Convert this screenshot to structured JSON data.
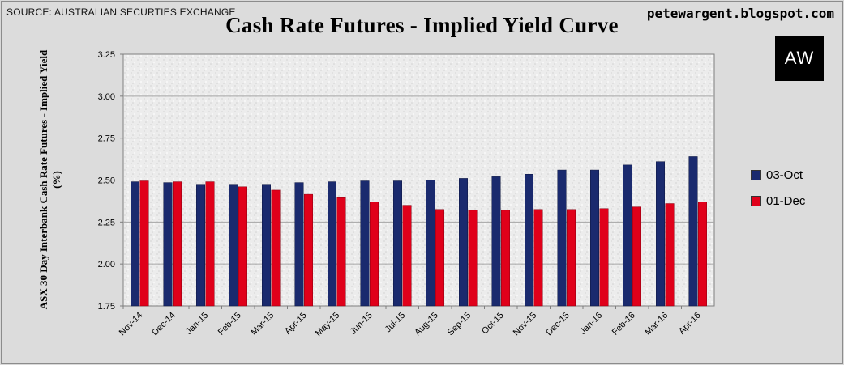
{
  "header": {
    "source": "SOURCE: AUSTRALIAN SECURTIES EXCHANGE",
    "blog": "petewargent.blogspot.com",
    "logo": "AW"
  },
  "colors": {
    "series1": "#1a2a6e",
    "series2": "#e0001a"
  },
  "chart_data": {
    "type": "bar",
    "title": "Cash Rate Futures - Implied Yield Curve",
    "xlabel": "",
    "ylabel": "ASX 30 Day Interbank Cash Rate Futures - Implied Yield (%)",
    "ylim": [
      1.75,
      3.25
    ],
    "yticks": [
      "1.75",
      "2.00",
      "2.25",
      "2.50",
      "2.75",
      "3.00",
      "3.25"
    ],
    "grid": true,
    "legend_position": "right",
    "categories": [
      "Nov-14",
      "Dec-14",
      "Jan-15",
      "Feb-15",
      "Mar-15",
      "Apr-15",
      "May-15",
      "Jun-15",
      "Jul-15",
      "Aug-15",
      "Sep-15",
      "Oct-15",
      "Nov-15",
      "Dec-15",
      "Jan-16",
      "Feb-16",
      "Mar-16",
      "Apr-16"
    ],
    "series": [
      {
        "name": "03-Oct",
        "values": [
          2.49,
          2.485,
          2.475,
          2.475,
          2.475,
          2.485,
          2.49,
          2.495,
          2.495,
          2.5,
          2.51,
          2.52,
          2.535,
          2.56,
          2.56,
          2.59,
          2.61,
          2.64
        ]
      },
      {
        "name": "01-Dec",
        "values": [
          2.495,
          2.49,
          2.49,
          2.46,
          2.44,
          2.415,
          2.395,
          2.37,
          2.35,
          2.325,
          2.32,
          2.32,
          2.325,
          2.325,
          2.33,
          2.34,
          2.36,
          2.37
        ]
      }
    ]
  }
}
